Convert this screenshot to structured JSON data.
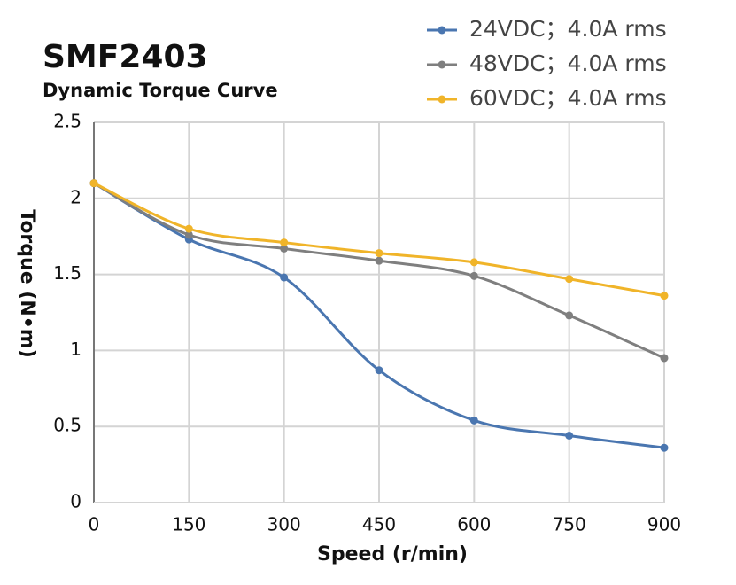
{
  "chart_data": {
    "type": "line",
    "title": "SMF2403",
    "subtitle": "Dynamic Torque Curve",
    "x_label": "Speed (r/min)",
    "y_label": "Torque (N•m)",
    "x": [
      0,
      150,
      300,
      450,
      600,
      750,
      900
    ],
    "xlim": [
      0,
      900
    ],
    "xticks": [
      0,
      150,
      300,
      450,
      600,
      750,
      900
    ],
    "ylim": [
      0,
      2.5
    ],
    "yticks": [
      0,
      0.5,
      1,
      1.5,
      2,
      2.5
    ],
    "grid": true,
    "legend": "top-right",
    "series": [
      {
        "name": "24VDC；4.0A rms",
        "color": "#4a76b0",
        "values": [
          2.1,
          1.73,
          1.48,
          0.87,
          0.54,
          0.44,
          0.36
        ]
      },
      {
        "name": "48VDC；4.0A rms",
        "color": "#7f7f7f",
        "values": [
          2.1,
          1.76,
          1.67,
          1.59,
          1.49,
          1.23,
          0.95
        ]
      },
      {
        "name": "60VDC；4.0A rms",
        "color": "#f0b429",
        "values": [
          2.1,
          1.8,
          1.71,
          1.64,
          1.58,
          1.47,
          1.36
        ]
      }
    ]
  }
}
